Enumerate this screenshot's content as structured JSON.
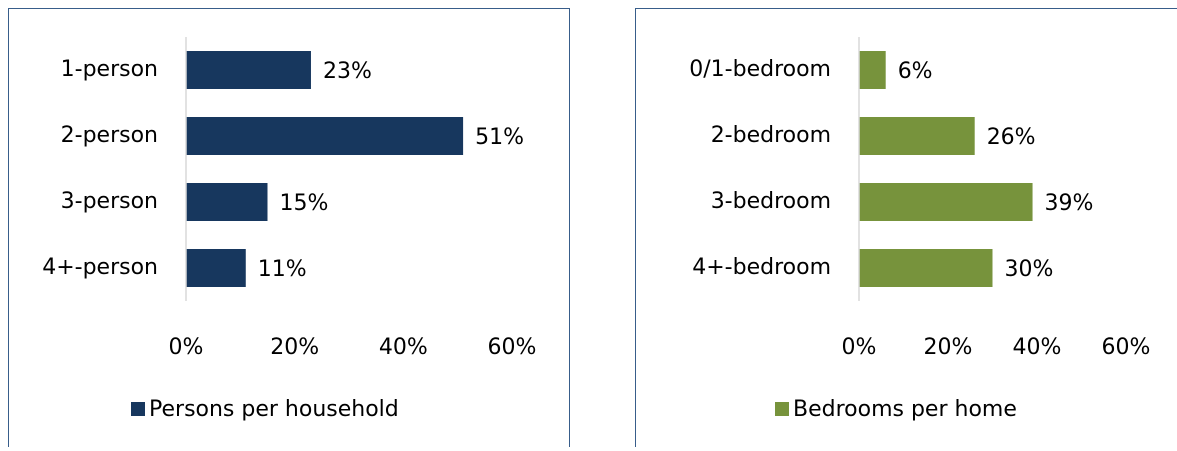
{
  "chart_data": [
    {
      "type": "bar",
      "orientation": "horizontal",
      "categories": [
        "1-person",
        "2-person",
        "3-person",
        "4+-person"
      ],
      "series": [
        {
          "name": "Persons per household",
          "color": "#17375e",
          "values": [
            23,
            51,
            15,
            11
          ],
          "value_labels": [
            "23%",
            "51%",
            "15%",
            "11%"
          ]
        }
      ],
      "xlim": [
        0,
        60
      ],
      "xticks": [
        {
          "value": 0,
          "label": "0%"
        },
        {
          "value": 20,
          "label": "20%"
        },
        {
          "value": 40,
          "label": "40%"
        },
        {
          "value": 60,
          "label": "60%"
        }
      ],
      "legend": "bottom"
    },
    {
      "type": "bar",
      "orientation": "horizontal",
      "categories": [
        "0/1-bedroom",
        "2-bedroom",
        "3-bedroom",
        "4+-bedroom"
      ],
      "series": [
        {
          "name": "Bedrooms per home",
          "color": "#77933c",
          "values": [
            6,
            26,
            39,
            30
          ],
          "value_labels": [
            "6%",
            "26%",
            "39%",
            "30%"
          ]
        }
      ],
      "xlim": [
        0,
        60
      ],
      "xticks": [
        {
          "value": 0,
          "label": "0%"
        },
        {
          "value": 20,
          "label": "20%"
        },
        {
          "value": 40,
          "label": "40%"
        },
        {
          "value": 60,
          "label": "60%"
        }
      ],
      "legend": "bottom"
    }
  ]
}
